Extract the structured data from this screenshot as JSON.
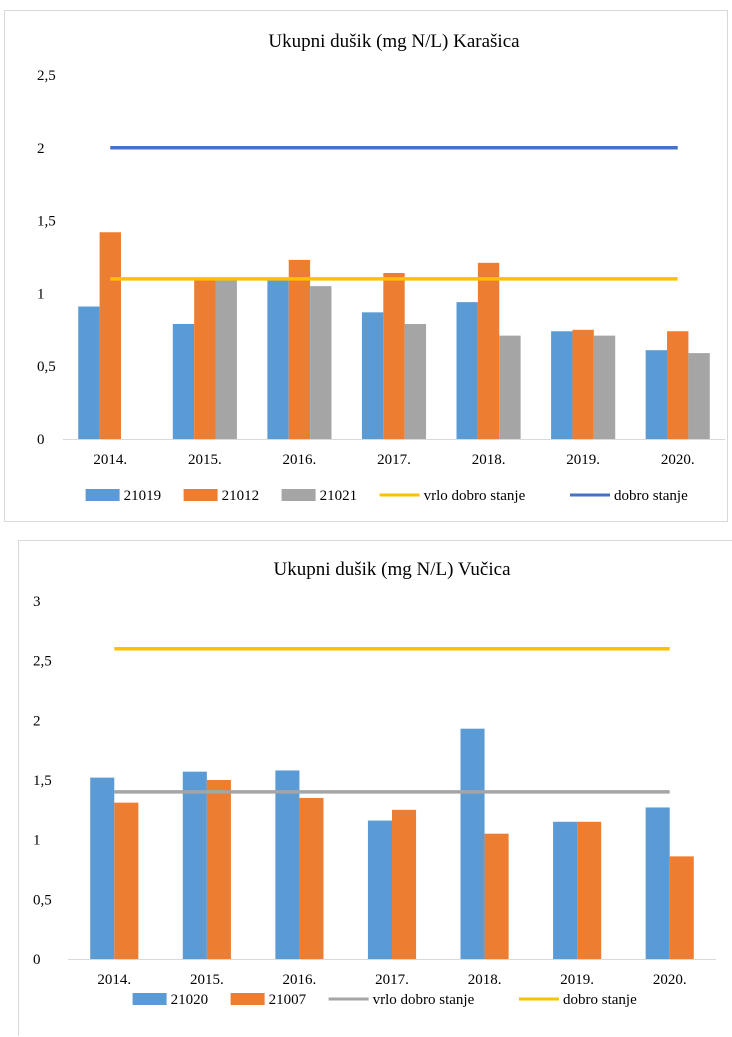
{
  "chart_data": [
    {
      "type": "bar",
      "title": "Ukupni dušik (mg N/L) Karašica",
      "categories": [
        "2014.",
        "2015.",
        "2016.",
        "2017.",
        "2018.",
        "2019.",
        "2020."
      ],
      "y_ticks": [
        "0",
        "0,5",
        "1",
        "1,5",
        "2",
        "2,5"
      ],
      "ylim": [
        0,
        2.5
      ],
      "series": [
        {
          "name": "21019",
          "kind": "bar",
          "color": "#5B9BD5",
          "values": [
            0.91,
            0.79,
            1.09,
            0.87,
            0.94,
            0.74,
            0.61
          ]
        },
        {
          "name": "21012",
          "kind": "bar",
          "color": "#ED7D31",
          "values": [
            1.42,
            1.1,
            1.23,
            1.14,
            1.21,
            0.75,
            0.74
          ]
        },
        {
          "name": "21021",
          "kind": "bar",
          "color": "#A5A5A5",
          "values": [
            null,
            1.1,
            1.05,
            0.79,
            0.71,
            0.71,
            0.59
          ]
        },
        {
          "name": "vrlo dobro stanje",
          "kind": "line",
          "color": "#FFC000",
          "values": [
            1.1,
            1.1,
            1.1,
            1.1,
            1.1,
            1.1,
            1.1
          ]
        },
        {
          "name": "dobro stanje",
          "kind": "line",
          "color": "#4472C4",
          "values": [
            2,
            2,
            2,
            2,
            2,
            2,
            2
          ]
        }
      ],
      "legend": "bottom",
      "grid": false
    },
    {
      "type": "bar",
      "title": "Ukupni dušik (mg N/L) Vučica",
      "categories": [
        "2014.",
        "2015.",
        "2016.",
        "2017.",
        "2018.",
        "2019.",
        "2020."
      ],
      "y_ticks": [
        "0",
        "0,5",
        "1",
        "1,5",
        "2",
        "2,5",
        "3"
      ],
      "ylim": [
        0,
        3
      ],
      "series": [
        {
          "name": "21020",
          "kind": "bar",
          "color": "#5B9BD5",
          "values": [
            1.52,
            1.57,
            1.58,
            1.16,
            1.93,
            1.15,
            1.27
          ]
        },
        {
          "name": "21007",
          "kind": "bar",
          "color": "#ED7D31",
          "values": [
            1.31,
            1.5,
            1.35,
            1.25,
            1.05,
            1.15,
            0.86
          ]
        },
        {
          "name": "vrlo dobro stanje",
          "kind": "line",
          "color": "#A5A5A5",
          "values": [
            1.4,
            1.4,
            1.4,
            1.4,
            1.4,
            1.4,
            1.4
          ]
        },
        {
          "name": "dobro stanje",
          "kind": "line",
          "color": "#FFC000",
          "values": [
            2.6,
            2.6,
            2.6,
            2.6,
            2.6,
            2.6,
            2.6
          ]
        }
      ],
      "legend": "bottom",
      "grid": false
    }
  ]
}
